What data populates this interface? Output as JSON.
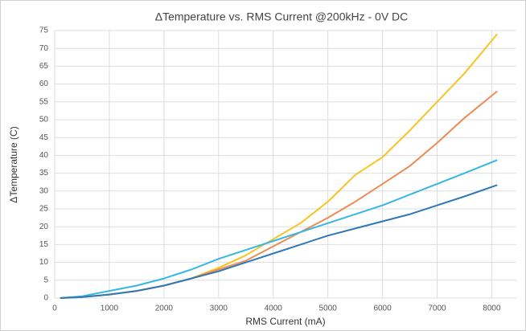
{
  "chart_data": {
    "type": "line",
    "title": "ΔTemperature vs. RMS Current @200kHz - 0V DC",
    "x_label": "RMS Current (mA)",
    "y_label": "ΔTemperature (C)",
    "x": [
      100,
      500,
      1000,
      1500,
      2000,
      2500,
      3000,
      3500,
      4000,
      4500,
      5000,
      5500,
      6000,
      6500,
      7000,
      7500,
      8100
    ],
    "series": [
      {
        "color": "#f7c325",
        "values": [
          0,
          0.3,
          1,
          2,
          3.5,
          5.5,
          8.5,
          12,
          16.5,
          21,
          27,
          34.5,
          39.5,
          47,
          55,
          63,
          74
        ]
      },
      {
        "color": "#ed8b55",
        "values": [
          0,
          0.3,
          1,
          2,
          3.5,
          5.5,
          8,
          10.5,
          14.5,
          18.5,
          22.5,
          27,
          32,
          37,
          43.5,
          50.5,
          58
        ]
      },
      {
        "color": "#35b7e3",
        "values": [
          0,
          0.5,
          2,
          3.5,
          5.5,
          8,
          11,
          13.5,
          16,
          18.5,
          21,
          23.5,
          26,
          29,
          32,
          35,
          38.7
        ]
      },
      {
        "color": "#2e78b7",
        "values": [
          0,
          0.3,
          1,
          2,
          3.5,
          5.5,
          7.5,
          10,
          12.5,
          15,
          17.5,
          19.5,
          21.5,
          23.5,
          26,
          28.5,
          31.7
        ]
      }
    ],
    "xlim": [
      0,
      8450
    ],
    "xticks": [
      0,
      1000,
      2000,
      3000,
      4000,
      5000,
      6000,
      7000,
      8000
    ],
    "ylim": [
      0,
      75
    ],
    "yticks": [
      0,
      5,
      10,
      15,
      20,
      25,
      30,
      35,
      40,
      45,
      50,
      55,
      60,
      65,
      70,
      75
    ],
    "grid": true
  }
}
